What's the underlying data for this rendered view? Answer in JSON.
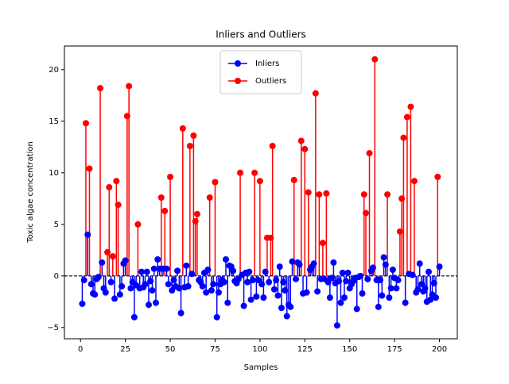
{
  "chart_data": {
    "type": "stem",
    "title": "Inliers and Outliers",
    "x_label": "Samples",
    "y_label": "Toxic algae concentration",
    "xlim": [
      -8.95,
      209.95
    ],
    "ylim": [
      -6.09,
      22.29
    ],
    "xticks": [
      0,
      25,
      50,
      75,
      100,
      125,
      150,
      175,
      200
    ],
    "yticks": [
      {
        "value": -5,
        "label": "−5"
      },
      0,
      5,
      10,
      15,
      20
    ],
    "baseline": 0,
    "legend": "upper center",
    "series": [
      {
        "name": "Inliers",
        "color": "#0000ff",
        "x": [
          1,
          2,
          4,
          6,
          7,
          8,
          9,
          10,
          12,
          13,
          14,
          17,
          19,
          22,
          23,
          24,
          25,
          28,
          29,
          30,
          31,
          33,
          34,
          35,
          36,
          37,
          38,
          39,
          40,
          41,
          42,
          43,
          44,
          46,
          48,
          49,
          51,
          52,
          53,
          54,
          55,
          56,
          58,
          59,
          60,
          62,
          66,
          67,
          68,
          69,
          70,
          71,
          73,
          74,
          76,
          77,
          78,
          79,
          80,
          81,
          82,
          83,
          84,
          85,
          86,
          87,
          88,
          90,
          91,
          92,
          93,
          94,
          95,
          96,
          98,
          99,
          101,
          102,
          103,
          105,
          108,
          109,
          110,
          111,
          112,
          113,
          114,
          115,
          116,
          117,
          118,
          120,
          121,
          122,
          124,
          126,
          128,
          129,
          130,
          132,
          134,
          136,
          138,
          139,
          140,
          141,
          142,
          143,
          144,
          145,
          146,
          147,
          148,
          149,
          150,
          151,
          152,
          153,
          154,
          155,
          156,
          157,
          160,
          162,
          163,
          165,
          166,
          167,
          168,
          169,
          170,
          172,
          173,
          174,
          175,
          176,
          177,
          181,
          183,
          185,
          187,
          188,
          189,
          190,
          191,
          192,
          193,
          194,
          195,
          196,
          197,
          198,
          200
        ],
        "values": [
          -2.7,
          -0.4,
          4.0,
          -0.8,
          -1.7,
          -1.8,
          -0.3,
          -0.1,
          1.3,
          -1.2,
          -1.6,
          -0.6,
          -2.2,
          -1.8,
          -1.0,
          1.2,
          1.5,
          -1.2,
          -0.6,
          -4.0,
          -0.9,
          -1.2,
          0.4,
          -1.1,
          -0.8,
          0.4,
          -2.8,
          -0.5,
          -1.4,
          0.7,
          -2.6,
          1.6,
          0.7,
          0.7,
          0.7,
          -0.8,
          -1.4,
          -0.4,
          -1.0,
          0.5,
          -1.2,
          -3.6,
          -1.1,
          1.0,
          -1.0,
          0.2,
          -0.4,
          -0.6,
          -1.0,
          0.3,
          -1.6,
          0.6,
          -1.4,
          -0.8,
          -4.0,
          -1.6,
          -0.8,
          -0.4,
          -0.6,
          1.6,
          -2.6,
          1.0,
          0.9,
          0.5,
          -0.5,
          -0.7,
          -0.3,
          0.1,
          -2.9,
          0.3,
          -0.6,
          0.4,
          -2.3,
          -0.4,
          -2.0,
          -0.4,
          -0.8,
          -2.1,
          0.4,
          -0.6,
          -1.3,
          -0.4,
          -1.9,
          0.9,
          -3.1,
          -0.6,
          -1.4,
          -3.9,
          -2.8,
          -3.0,
          1.4,
          -0.3,
          1.3,
          1.1,
          -1.7,
          -1.6,
          0.6,
          0.9,
          1.2,
          -1.5,
          -0.3,
          -0.3,
          -0.6,
          -2.1,
          -0.2,
          1.3,
          -0.7,
          -4.8,
          -0.5,
          -2.6,
          0.3,
          -2.1,
          -0.5,
          0.3,
          -1.2,
          -0.8,
          -0.5,
          -0.2,
          -3.2,
          -0.1,
          0.0,
          -1.7,
          -0.3,
          0.5,
          0.8,
          -0.4,
          -3.0,
          -0.4,
          -1.9,
          1.8,
          1.1,
          -2.1,
          -1.2,
          0.6,
          -0.2,
          -1.2,
          -0.4,
          -2.6,
          0.2,
          0.1,
          -1.6,
          -1.3,
          1.2,
          -0.8,
          -1.5,
          -1.2,
          -2.5,
          0.4,
          -2.3,
          -1.8,
          -0.7,
          -2.1,
          0.9
        ]
      },
      {
        "name": "Outliers",
        "color": "#ff0000",
        "x": [
          3,
          5,
          11,
          15,
          16,
          18,
          20,
          21,
          26,
          27,
          32,
          45,
          47,
          50,
          57,
          61,
          63,
          64,
          65,
          72,
          75,
          89,
          97,
          100,
          104,
          106,
          107,
          119,
          123,
          125,
          127,
          131,
          133,
          135,
          137,
          158,
          159,
          161,
          164,
          171,
          178,
          179,
          180,
          182,
          184,
          186,
          199
        ],
        "values": [
          14.8,
          10.4,
          18.2,
          2.3,
          8.6,
          1.9,
          9.2,
          6.9,
          15.5,
          18.4,
          5.0,
          7.6,
          6.3,
          9.6,
          14.3,
          12.6,
          13.6,
          5.3,
          6.0,
          7.6,
          9.1,
          10.0,
          10.0,
          9.2,
          3.7,
          3.7,
          12.6,
          9.3,
          13.1,
          12.3,
          8.1,
          17.7,
          7.9,
          3.2,
          8.0,
          7.9,
          6.1,
          11.9,
          21.0,
          7.9,
          4.3,
          7.5,
          13.4,
          15.4,
          16.4,
          9.2,
          9.6
        ]
      }
    ]
  }
}
